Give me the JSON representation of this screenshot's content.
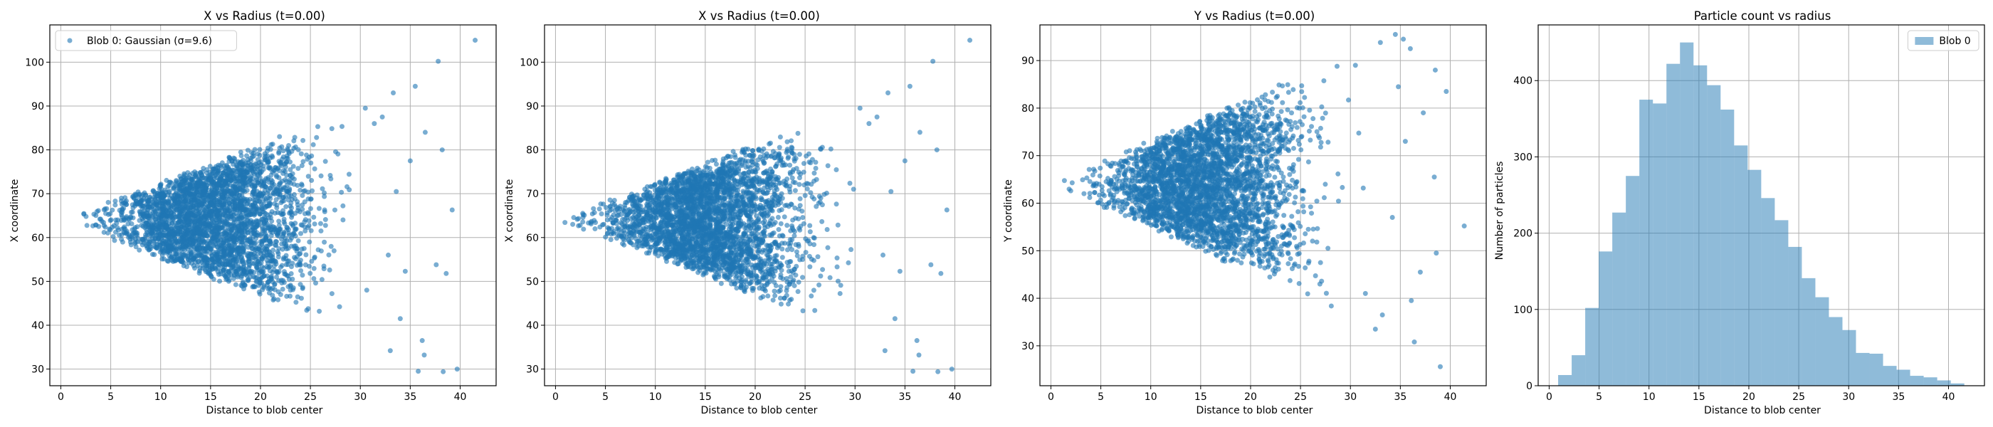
{
  "figure": {
    "background": "#ffffff",
    "accent": "#1f77b4"
  },
  "chart_data": [
    {
      "type": "scatter",
      "title": "X vs Radius (t=0.00)",
      "xlabel": "Distance to blob center",
      "ylabel": "X coordinate",
      "xlim": [
        -1.1,
        43.6
      ],
      "ylim": [
        26.2,
        108.5
      ],
      "xticks": [
        0,
        5,
        10,
        15,
        20,
        25,
        30,
        35,
        40
      ],
      "yticks": [
        30,
        40,
        50,
        60,
        70,
        80,
        90,
        100
      ],
      "grid": true,
      "legend": {
        "placement": "top-left",
        "entries": [
          "Blob 0: Gaussian (σ=9.6)"
        ]
      },
      "series": [
        {
          "name": "Blob 0: Gaussian (σ=9.6)",
          "color": "#1f77b4",
          "profile": {
            "center": 64,
            "upper_slope": 0.9,
            "lower_slope": -0.9,
            "x_range": [
              0.8,
              32
            ]
          },
          "outliers": [
            {
              "x": 41.5,
              "y": 105
            },
            {
              "x": 37.8,
              "y": 100.2
            },
            {
              "x": 35.5,
              "y": 94.5
            },
            {
              "x": 33.3,
              "y": 93
            },
            {
              "x": 38.2,
              "y": 80
            },
            {
              "x": 36.5,
              "y": 84
            },
            {
              "x": 39.2,
              "y": 66.3
            },
            {
              "x": 38.6,
              "y": 51.8
            },
            {
              "x": 37.6,
              "y": 53.8
            },
            {
              "x": 36.2,
              "y": 36.5
            },
            {
              "x": 36.4,
              "y": 33.2
            },
            {
              "x": 35.8,
              "y": 29.5
            },
            {
              "x": 38.3,
              "y": 29.4
            },
            {
              "x": 39.7,
              "y": 30
            },
            {
              "x": 34.0,
              "y": 41.5
            },
            {
              "x": 33.0,
              "y": 34.2
            },
            {
              "x": 34.5,
              "y": 52.3
            },
            {
              "x": 33.6,
              "y": 70.5
            },
            {
              "x": 35.0,
              "y": 77.5
            },
            {
              "x": 32.2,
              "y": 87.5
            },
            {
              "x": 30.5,
              "y": 89.5
            },
            {
              "x": 31.4,
              "y": 86
            },
            {
              "x": 32.8,
              "y": 56
            }
          ]
        }
      ]
    },
    {
      "type": "scatter",
      "title": "X vs Radius (t=0.00)",
      "xlabel": "Distance to blob center",
      "ylabel": "X coordinate",
      "xlim": [
        -1.1,
        43.6
      ],
      "ylim": [
        26.2,
        108.5
      ],
      "xticks": [
        0,
        5,
        10,
        15,
        20,
        25,
        30,
        35,
        40
      ],
      "yticks": [
        30,
        40,
        50,
        60,
        70,
        80,
        90,
        100
      ],
      "grid": true,
      "series": [
        {
          "color": "#1f77b4",
          "profile": {
            "center": 64,
            "upper_slope": 0.9,
            "lower_slope": -0.9,
            "x_range": [
              0.8,
              32
            ]
          },
          "outliers": [
            {
              "x": 41.5,
              "y": 105
            },
            {
              "x": 37.8,
              "y": 100.2
            },
            {
              "x": 35.5,
              "y": 94.5
            },
            {
              "x": 33.3,
              "y": 93
            },
            {
              "x": 38.2,
              "y": 80
            },
            {
              "x": 36.5,
              "y": 84
            },
            {
              "x": 39.2,
              "y": 66.3
            },
            {
              "x": 38.6,
              "y": 51.8
            },
            {
              "x": 37.6,
              "y": 53.8
            },
            {
              "x": 36.2,
              "y": 36.5
            },
            {
              "x": 36.4,
              "y": 33.2
            },
            {
              "x": 35.8,
              "y": 29.5
            },
            {
              "x": 38.3,
              "y": 29.4
            },
            {
              "x": 39.7,
              "y": 30
            },
            {
              "x": 34.0,
              "y": 41.5
            },
            {
              "x": 33.0,
              "y": 34.2
            },
            {
              "x": 34.5,
              "y": 52.3
            },
            {
              "x": 33.6,
              "y": 70.5
            },
            {
              "x": 35.0,
              "y": 77.5
            },
            {
              "x": 32.2,
              "y": 87.5
            },
            {
              "x": 30.5,
              "y": 89.5
            },
            {
              "x": 31.4,
              "y": 86
            },
            {
              "x": 32.8,
              "y": 56
            }
          ]
        }
      ]
    },
    {
      "type": "scatter",
      "title": "Y vs Radius (t=0.00)",
      "xlabel": "Distance to blob center",
      "ylabel": "Y coordinate",
      "xlim": [
        -1.1,
        43.6
      ],
      "ylim": [
        21.6,
        97.5
      ],
      "xticks": [
        0,
        5,
        10,
        15,
        20,
        25,
        30,
        35,
        40
      ],
      "yticks": [
        30,
        40,
        50,
        60,
        70,
        80,
        90
      ],
      "grid": true,
      "series": [
        {
          "color": "#1f77b4",
          "profile": {
            "center": 64,
            "upper_slope": 0.95,
            "lower_slope": -0.9,
            "x_range": [
              0.8,
              32
            ]
          },
          "outliers": [
            {
              "x": 34.5,
              "y": 95.5
            },
            {
              "x": 35.3,
              "y": 94.5
            },
            {
              "x": 36.0,
              "y": 92.5
            },
            {
              "x": 33.0,
              "y": 93.8
            },
            {
              "x": 38.5,
              "y": 88
            },
            {
              "x": 39.6,
              "y": 83.5
            },
            {
              "x": 37.3,
              "y": 79
            },
            {
              "x": 41.4,
              "y": 55.2
            },
            {
              "x": 38.4,
              "y": 65.5
            },
            {
              "x": 36.1,
              "y": 39.5
            },
            {
              "x": 36.4,
              "y": 30.8
            },
            {
              "x": 39.0,
              "y": 25.6
            },
            {
              "x": 38.6,
              "y": 49.5
            },
            {
              "x": 37.0,
              "y": 45.5
            },
            {
              "x": 34.2,
              "y": 57
            },
            {
              "x": 35.5,
              "y": 73
            },
            {
              "x": 34.8,
              "y": 84.5
            },
            {
              "x": 33.2,
              "y": 36.5
            },
            {
              "x": 32.5,
              "y": 33.5
            },
            {
              "x": 31.5,
              "y": 41
            },
            {
              "x": 30.5,
              "y": 89
            }
          ]
        }
      ]
    },
    {
      "type": "bar",
      "title": "Particle count vs radius",
      "xlabel": "Distance to blob center",
      "ylabel": "Number of particles",
      "xlim": [
        -1.1,
        43.6
      ],
      "ylim": [
        0,
        473
      ],
      "xticks": [
        0,
        5,
        10,
        15,
        20,
        25,
        30,
        35,
        40
      ],
      "yticks": [
        0,
        100,
        200,
        300,
        400
      ],
      "grid": true,
      "legend": {
        "placement": "top-right",
        "entries": [
          "Blob 0"
        ]
      },
      "bin_start": 0.9,
      "bin_width": 1.356,
      "series": [
        {
          "name": "Blob 0",
          "color": "#1f77b4",
          "values": [
            14,
            40,
            102,
            176,
            227,
            275,
            375,
            370,
            422,
            450,
            420,
            394,
            362,
            315,
            283,
            246,
            217,
            182,
            141,
            116,
            90,
            73,
            43,
            42,
            26,
            21,
            13,
            11,
            7,
            3
          ]
        }
      ]
    }
  ]
}
